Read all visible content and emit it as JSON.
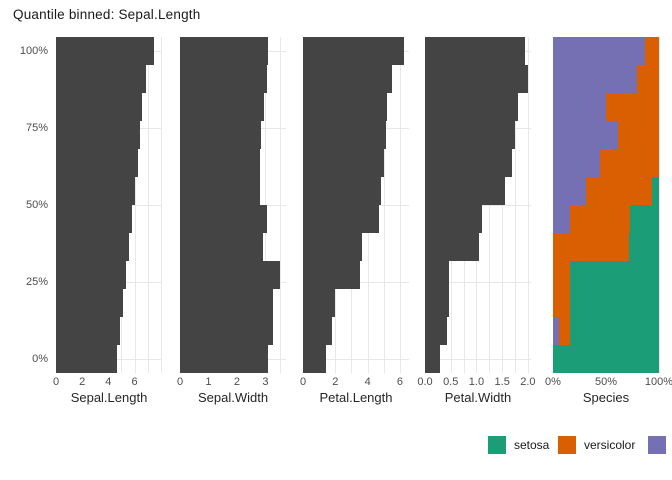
{
  "title": "Quantile binned: Sepal.Length",
  "colors": {
    "bar": "#444444",
    "setosa": "#1B9E77",
    "versicolor": "#D95F02",
    "virginica": "#7570B3",
    "grid": "#E8E8E8",
    "axis_text": "#4D4D4D",
    "title_text": "#1A1A1A"
  },
  "y_axis": {
    "tick_labels_top_to_bottom": [
      "100%",
      "75%",
      "50%",
      "25%",
      "0%"
    ]
  },
  "legend": {
    "items": [
      {
        "label": "setosa",
        "color": "#1B9E77"
      },
      {
        "label": "versicolor",
        "color": "#D95F02"
      },
      {
        "label": "",
        "color": "#7570B3"
      }
    ]
  },
  "chart_data": {
    "type": "bar",
    "orientation": "horizontal",
    "n_bins": 12,
    "bin_axis": "quantile of Sepal.Length",
    "y_tick_labels": [
      "0%",
      "25%",
      "50%",
      "75%",
      "100%"
    ],
    "grid": "on",
    "panels": [
      {
        "xlabel": "Sepal.Length",
        "xlim": [
          0,
          8.1
        ],
        "tick_values": [
          0,
          2,
          4,
          6
        ],
        "tick_labels": [
          "0",
          "2",
          "4",
          "6"
        ],
        "gridline_values": [
          1,
          2,
          3,
          4,
          5,
          6,
          7,
          8
        ],
        "values_bottom_to_top": [
          4.65,
          4.9,
          5.1,
          5.35,
          5.6,
          5.8,
          6.0,
          6.25,
          6.45,
          6.6,
          6.85,
          7.5
        ]
      },
      {
        "xlabel": "Sepal.Width",
        "xlim": [
          0,
          3.72
        ],
        "tick_values": [
          0,
          1,
          2,
          3
        ],
        "tick_labels": [
          "0",
          "1",
          "2",
          "3"
        ],
        "gridline_values": [
          0.5,
          1,
          1.5,
          2,
          2.5,
          3,
          3.5
        ],
        "values_bottom_to_top": [
          3.1,
          3.25,
          3.25,
          3.5,
          2.9,
          3.05,
          2.8,
          2.8,
          2.85,
          2.95,
          3.05,
          3.1
        ]
      },
      {
        "xlabel": "Petal.Length",
        "xlim": [
          0,
          6.56
        ],
        "tick_values": [
          0,
          2,
          4,
          6
        ],
        "tick_labels": [
          "0",
          "2",
          "4",
          "6"
        ],
        "gridline_values": [
          1,
          2,
          3,
          4,
          5,
          6
        ],
        "values_bottom_to_top": [
          1.45,
          1.8,
          2.0,
          3.55,
          3.65,
          4.7,
          4.85,
          5.0,
          5.15,
          5.2,
          5.5,
          6.25
        ]
      },
      {
        "xlabel": "Petal.Width",
        "xlim": [
          0,
          2.06
        ],
        "tick_values": [
          0,
          0.5,
          1,
          1.5,
          2
        ],
        "tick_labels": [
          "0.0",
          "0.5",
          "1.0",
          "1.5",
          "2.0"
        ],
        "gridline_values": [
          0.25,
          0.5,
          0.75,
          1,
          1.25,
          1.5,
          1.75,
          2
        ],
        "values_bottom_to_top": [
          0.3,
          0.43,
          0.46,
          0.46,
          1.05,
          1.1,
          1.55,
          1.7,
          1.75,
          1.8,
          2.0,
          1.95
        ]
      },
      {
        "xlabel": "Species",
        "xlim": [
          0,
          100
        ],
        "tick_values": [
          0,
          50,
          100
        ],
        "tick_labels": [
          "0%",
          "50%",
          "100%"
        ],
        "gridline_values": [
          25,
          50,
          75,
          100
        ],
        "stack_series_left_to_right": [
          "virginica",
          "versicolor",
          "setosa"
        ],
        "stacked_bottom_to_top": [
          [
            0,
            0,
            100
          ],
          [
            6,
            10,
            84
          ],
          [
            0,
            16,
            84
          ],
          [
            0,
            16,
            84
          ],
          [
            0,
            72,
            28
          ],
          [
            16,
            57,
            27
          ],
          [
            31,
            62,
            7
          ],
          [
            44,
            56,
            0
          ],
          [
            61,
            39,
            0
          ],
          [
            50,
            50,
            0
          ],
          [
            79,
            21,
            0
          ],
          [
            87,
            13,
            0
          ]
        ]
      }
    ]
  }
}
